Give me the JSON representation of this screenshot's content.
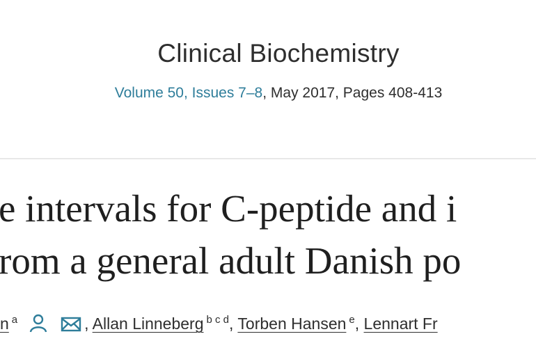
{
  "journal": {
    "title": "Clinical Biochemistry",
    "issue_link": "Volume 50, Issues 7–8",
    "issue_rest": ", May 2017, Pages 408-413"
  },
  "article": {
    "title_lines": [
      "e intervals for C-peptide and i",
      "rom a general adult Danish po"
    ]
  },
  "authors": {
    "separator": ",",
    "list": [
      {
        "name": "n",
        "sup": "a"
      },
      {
        "name": "Allan Linneberg",
        "sup": "b c d"
      },
      {
        "name": "Torben Hansen",
        "sup": "e"
      },
      {
        "name": "Lennart Fr"
      }
    ]
  }
}
